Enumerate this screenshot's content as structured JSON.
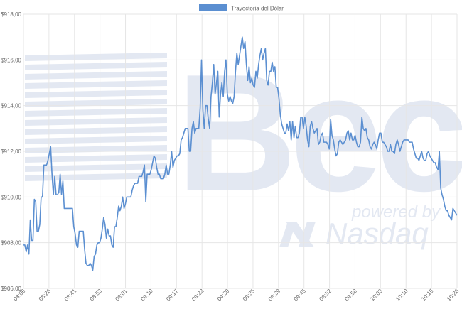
{
  "chart_data": {
    "type": "line",
    "series": [
      {
        "name": "Trayectoria del Dólar",
        "color": "#5b8fd1",
        "values": [
          907.9,
          907.9,
          907.6,
          907.9,
          907.5,
          909.0,
          908.1,
          908.1,
          909.9,
          909.8,
          908.5,
          908.5,
          908.8,
          910.0,
          910.0,
          911.4,
          911.4,
          911.4,
          911.6,
          911.9,
          912.2,
          911.0,
          910.1,
          910.9,
          910.1,
          910.1,
          910.2,
          911.0,
          910.1,
          910.7,
          909.5,
          909.5,
          909.5,
          909.5,
          909.5,
          909.5,
          909.5,
          908.7,
          908.4,
          907.9,
          907.8,
          908.5,
          908.5,
          908.5,
          908.5,
          907.7,
          907.1,
          907.0,
          907.0,
          907.1,
          907.0,
          906.8,
          907.4,
          907.5,
          907.9,
          908.0,
          908.0,
          908.2,
          908.6,
          909.1,
          908.8,
          908.2,
          908.6,
          908.3,
          908.3,
          907.9,
          907.8,
          908.7,
          908.7,
          909.1,
          909.6,
          909.4,
          909.6,
          910.0,
          909.5,
          909.7,
          910.0,
          910.0,
          910.0,
          910.0,
          910.3,
          910.5,
          910.6,
          910.6,
          910.6,
          910.9,
          910.9,
          910.9,
          911.1,
          911.4,
          909.8,
          911.0,
          911.0,
          911.0,
          911.2,
          911.5,
          911.8,
          911.7,
          911.3,
          911.0,
          911.0,
          910.8,
          910.8,
          910.8,
          911.0,
          911.4,
          911.0,
          911.0,
          911.4,
          912.0,
          911.3,
          911.6,
          911.7,
          911.8,
          911.8,
          911.9,
          912.5,
          912.6,
          912.8,
          913.0,
          913.0,
          913.0,
          912.0,
          912.0,
          913.0,
          913.3,
          912.8,
          913.0,
          913.0,
          913.0,
          913.9,
          916.0,
          913.8,
          913.0,
          914.0,
          914.0,
          913.4,
          913.0,
          914.4,
          915.0,
          915.8,
          914.5,
          915.0,
          915.5,
          913.5,
          914.5,
          915.0,
          914.4,
          915.5,
          916.0,
          914.5,
          914.2,
          914.4,
          914.2,
          914.1,
          914.4,
          915.5,
          916.3,
          915.8,
          916.2,
          916.6,
          917.0,
          916.5,
          916.8,
          915.8,
          915.1,
          915.7,
          915.0,
          915.2,
          914.9,
          914.8,
          915.5,
          915.2,
          915.8,
          916.2,
          916.5,
          916.0,
          916.3,
          916.5,
          915.1,
          914.9,
          915.5,
          915.5,
          915.9,
          915.5,
          915.7,
          914.8,
          914.8,
          914.3,
          913.6,
          913.2,
          913.0,
          912.8,
          912.8,
          913.2,
          912.9,
          913.3,
          912.5,
          913.3,
          912.6,
          913.1,
          912.6,
          912.6,
          912.8,
          913.5,
          913.5,
          913.0,
          913.5,
          913.1,
          912.5,
          912.2,
          913.1,
          913.3,
          913.0,
          912.8,
          912.9,
          913.0,
          912.3,
          912.4,
          912.7,
          912.8,
          912.4,
          912.4,
          912.4,
          912.3,
          912.1,
          913.4,
          912.7,
          912.5,
          912.1,
          911.8,
          911.9,
          912.4,
          912.5,
          912.4,
          912.3,
          912.4,
          912.5,
          912.8,
          912.9,
          912.5,
          912.8,
          912.5,
          912.5,
          912.7,
          912.4,
          912.2,
          912.2,
          912.4,
          913.5,
          913.0,
          912.9,
          913.0,
          912.6,
          912.5,
          912.2,
          912.1,
          912.3,
          912.4,
          912.3,
          912.1,
          912.5,
          912.8,
          912.8,
          912.4,
          912.4,
          912.3,
          912.2,
          912.0,
          912.0,
          912.3,
          912.0,
          912.0,
          911.9,
          912.3,
          912.5,
          912.3,
          912.0,
          912.2,
          912.4,
          912.5,
          912.5,
          912.5,
          912.5,
          912.4,
          912.4,
          912.4,
          912.1,
          911.9,
          911.7,
          911.7,
          911.6,
          911.8,
          912.0,
          911.7,
          911.6,
          911.6,
          911.9,
          912.0,
          911.8,
          911.7,
          911.6,
          911.5,
          911.5,
          911.3,
          911.2,
          912.0,
          910.4,
          910.1,
          909.9,
          909.6,
          909.4,
          909.4,
          909.2,
          909.1,
          909.0,
          909.5,
          909.4,
          909.3,
          909.2
        ]
      }
    ],
    "x_tick_labels": [
      "08:06",
      "08:26",
      "08:41",
      "08:53",
      "09:01",
      "09:10",
      "09:17",
      "09:22",
      "09:30",
      "09:35",
      "09:39",
      "09:45",
      "09:52",
      "09:58",
      "10:03",
      "10:10",
      "10:15",
      "10:26"
    ],
    "y_tick_labels": [
      "$906,00",
      "$908,00",
      "$910,00",
      "$912,00",
      "$914,00",
      "$916,00",
      "$918,00"
    ],
    "y_ticks": [
      906,
      908,
      910,
      912,
      914,
      916,
      918
    ],
    "ylim": [
      906,
      918
    ],
    "grid": true,
    "legend_position": "top-center",
    "background_color": "#ffffff",
    "grid_color": "#e6e6e6"
  },
  "watermark": {
    "brand_text": "Bec",
    "tagline_text": "powered by",
    "company_text": "Nasdaq",
    "color": "#e3e8f2"
  }
}
